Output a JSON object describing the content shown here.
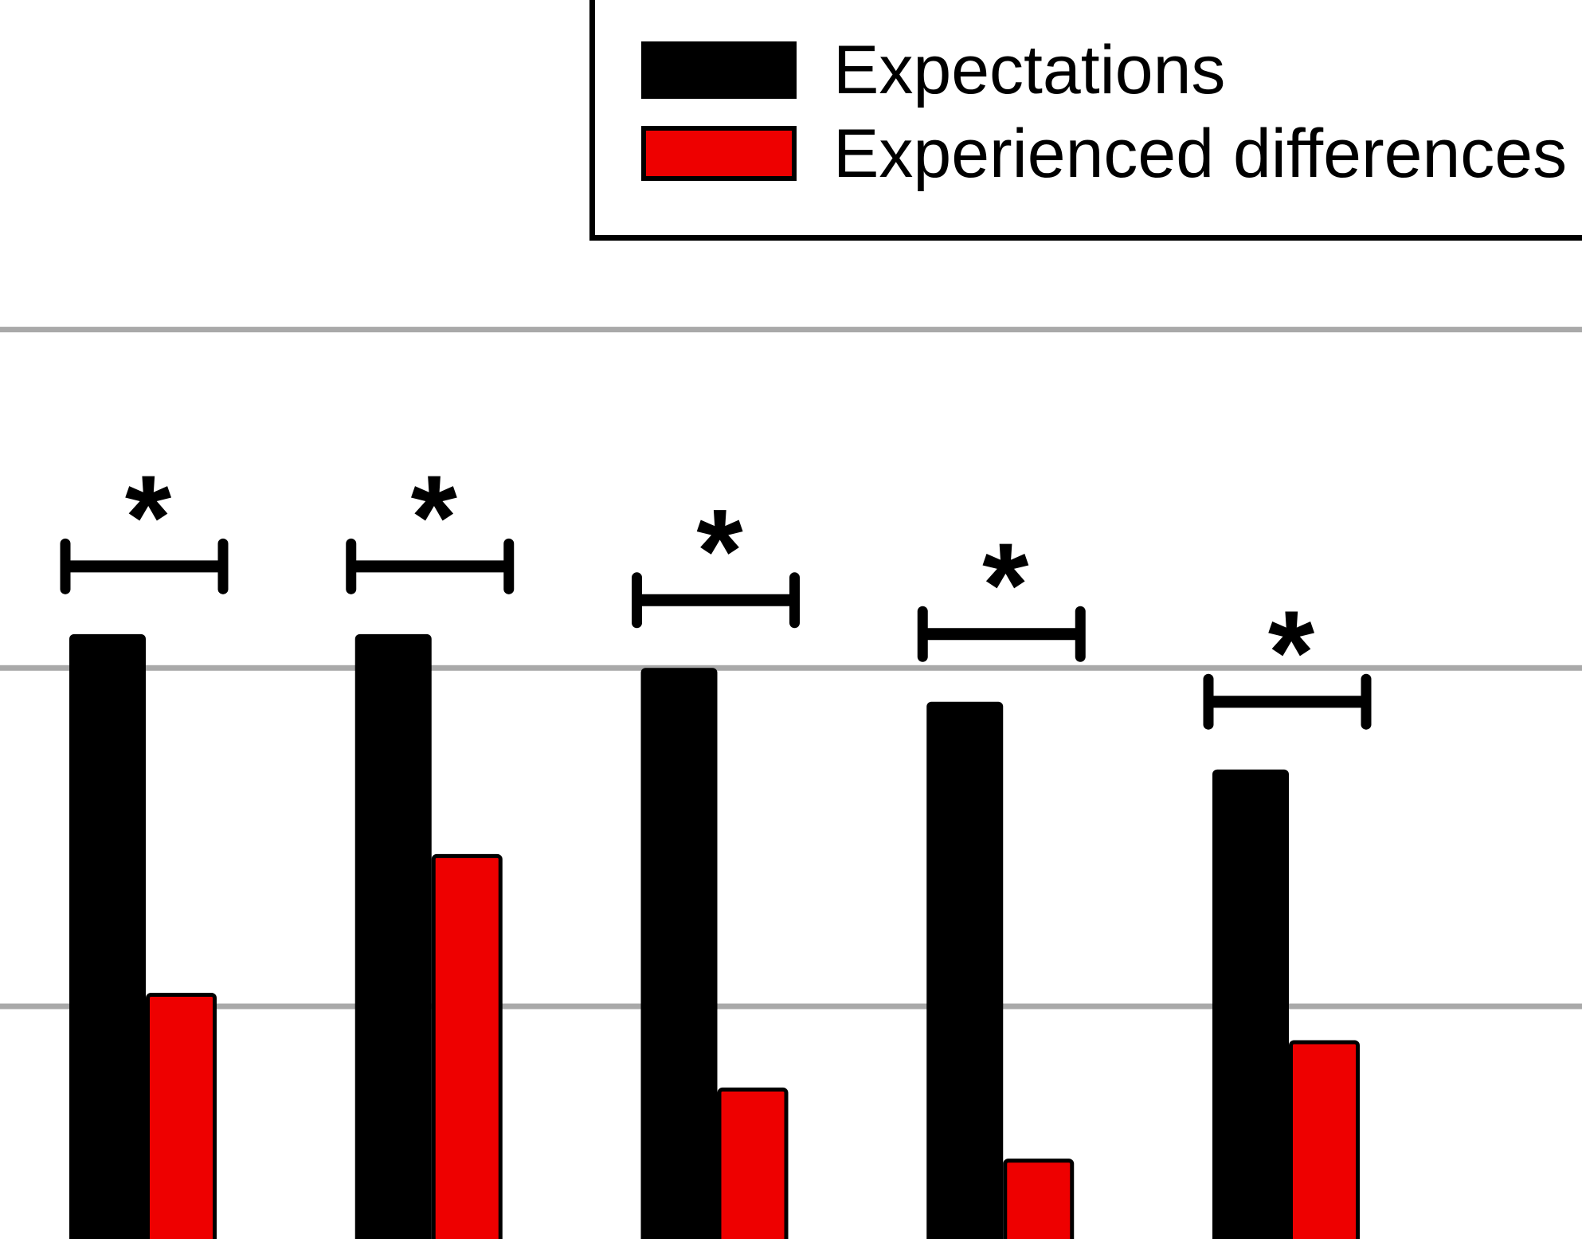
{
  "legend": {
    "items": [
      {
        "label": "Expectations",
        "color": "#000000"
      },
      {
        "label": "Experienced differences",
        "color": "#EE0000"
      }
    ]
  },
  "chart_data": {
    "type": "bar",
    "title": "",
    "categories": [
      "",
      "",
      "",
      "",
      ""
    ],
    "series": [
      {
        "name": "Expectations",
        "color": "#000000",
        "values": [
          2.1,
          2.1,
          2.0,
          1.9,
          1.7
        ]
      },
      {
        "name": "Experienced differences",
        "color": "#EE0000",
        "values": [
          1.04,
          1.45,
          0.76,
          0.55,
          0.9
        ]
      }
    ],
    "value_units": "gridline units; horizontal gridlines fall at values 1, 2 and 3 (axis scale labels are cropped out of view)",
    "significance_markers": [
      {
        "pair": 1,
        "label": "*"
      },
      {
        "pair": 2,
        "label": "*"
      },
      {
        "pair": 3,
        "label": "*"
      },
      {
        "pair": 4,
        "label": "*"
      },
      {
        "pair": 5,
        "label": "*"
      }
    ],
    "gridlines": {
      "visible": true,
      "values": [
        1,
        2,
        3
      ],
      "color": "#A9A9A9"
    },
    "legend_position": "top",
    "notes": "Figure is cropped: y-axis, baseline and category labels are outside the visible area; every bar pair carries a significance bracket with an asterisk"
  }
}
